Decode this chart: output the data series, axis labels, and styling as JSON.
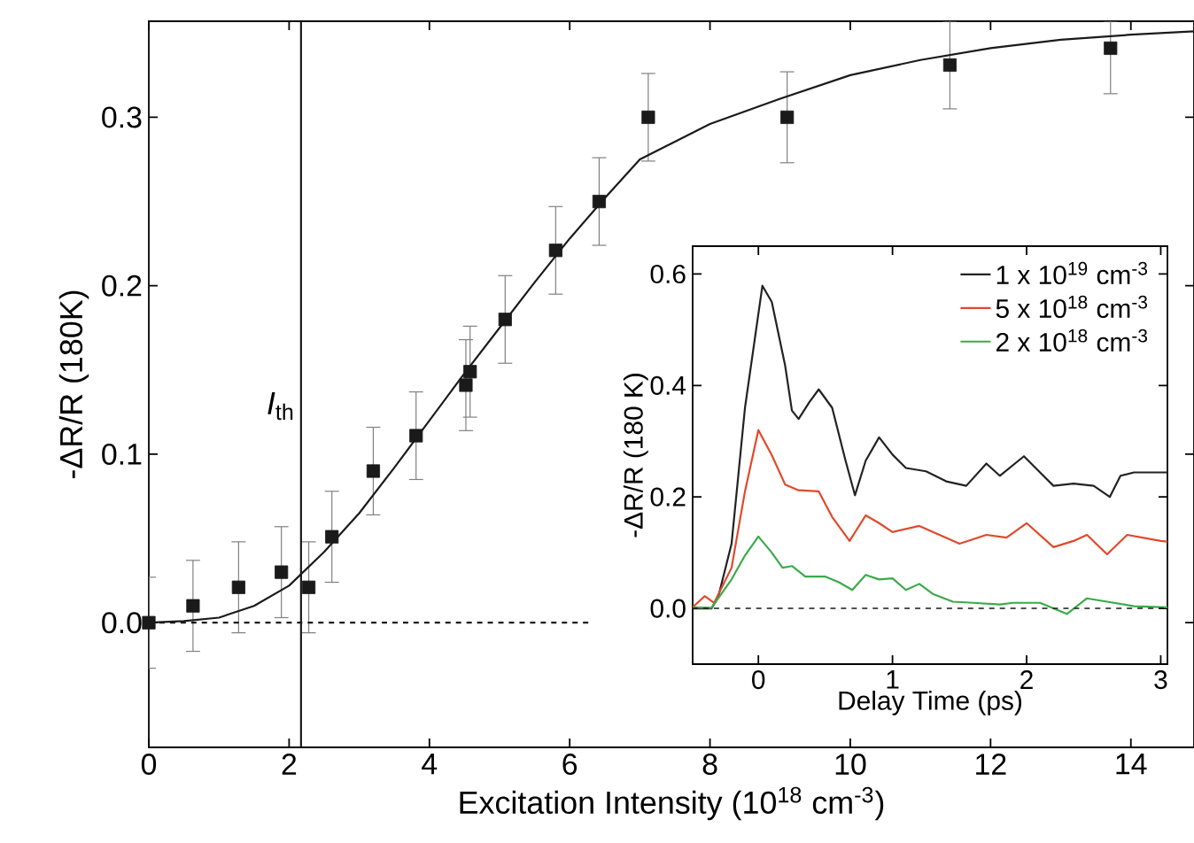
{
  "chart_data": [
    {
      "type": "scatter",
      "xlabel": "Excitation Intensity (10$^{18}$ cm$^{-3}$)",
      "ylabel": "-ΔR/R (180K)",
      "xlim": [
        0,
        14.9
      ],
      "ylim": [
        -0.074,
        0.357
      ],
      "xticks": [
        0,
        2,
        4,
        6,
        8,
        10,
        12,
        14
      ],
      "yticks": [
        {
          "value": 0,
          "label": "0.0"
        },
        {
          "value": 0.1,
          "label": "0.1"
        },
        {
          "value": 0.2,
          "label": "0.2"
        },
        {
          "value": 0.3,
          "label": "0.3"
        }
      ],
      "marker": "square",
      "x": [
        0,
        0.63,
        1.28,
        1.89,
        2.28,
        2.61,
        3.2,
        3.81,
        4.52,
        4.58,
        5.08,
        5.8,
        6.42,
        7.12,
        9.1,
        11.42,
        13.71
      ],
      "series": [
        {
          "type": "scatter",
          "color": "#1a1a1a",
          "values": [
            0,
            0.01,
            0.021,
            0.03,
            0.021,
            0.051,
            0.09,
            0.111,
            0.141,
            0.149,
            0.18,
            0.221,
            0.25,
            0.3,
            0.3,
            0.331,
            0.341
          ],
          "errors": [
            0.027,
            0.027,
            0.027,
            0.027,
            0.027,
            0.027,
            0.026,
            0.026,
            0.027,
            0.027,
            0.026,
            0.026,
            0.026,
            0.026,
            0.027,
            [
              0.305,
              0.357
            ],
            [
              0.314,
              0.357
            ]
          ]
        },
        {
          "type": "line",
          "color": "#1a1a1a",
          "line_style": "solid",
          "marker": "none",
          "x": [
            0,
            0.5,
            1,
            1.5,
            2,
            2.5,
            3,
            3.5,
            4,
            4.5,
            5,
            5.5,
            6,
            6.5,
            7,
            8,
            9,
            10,
            11,
            12,
            13,
            14,
            14.9
          ],
          "values": [
            0,
            0.001,
            0.003,
            0.01,
            0.022,
            0.042,
            0.065,
            0.092,
            0.12,
            0.148,
            0.175,
            0.202,
            0.228,
            0.252,
            0.275,
            0.296,
            0.311,
            0.325,
            0.334,
            0.341,
            0.346,
            0.349,
            0.351
          ]
        },
        {
          "type": "line",
          "color": "#1a1a1a",
          "line_style": "dashed",
          "marker": "none",
          "x": [
            0,
            6.3
          ],
          "values": [
            0,
            0
          ]
        }
      ],
      "ref_lines": [
        {
          "axis": "x",
          "value": 2.17,
          "label": "*I*$_{th}$",
          "color": "#1a1a1a",
          "line_style": "solid"
        }
      ]
    },
    {
      "type": "line",
      "xlabel": "Delay Time (ps)",
      "ylabel": "-ΔR/R (180 K)",
      "xlim": [
        -0.49,
        3.05
      ],
      "ylim": [
        -0.1,
        0.65
      ],
      "xticks": [
        0,
        1,
        2,
        3
      ],
      "yticks": [
        {
          "value": 0,
          "label": "0.0"
        },
        {
          "value": 0.2,
          "label": "0.2"
        },
        {
          "value": 0.4,
          "label": "0.4"
        },
        {
          "value": 0.6,
          "label": "0.6"
        }
      ],
      "legend": "top right",
      "marker": "none",
      "line_style": "solid",
      "series": [
        {
          "name": "1 x 10$^{19}$ cm$^{-3}$",
          "color": "#222222",
          "x": [
            -0.49,
            -0.35,
            -0.3,
            -0.2,
            -0.1,
            0.03,
            0.1,
            0.2,
            0.25,
            0.3,
            0.38,
            0.45,
            0.55,
            0.65,
            0.72,
            0.8,
            0.9,
            1.0,
            1.1,
            1.25,
            1.4,
            1.55,
            1.7,
            1.8,
            1.98,
            2.1,
            2.2,
            2.35,
            2.5,
            2.62,
            2.7,
            2.8,
            3.0,
            3.05
          ],
          "values": [
            0,
            0,
            0.02,
            0.116,
            0.36,
            0.579,
            0.55,
            0.435,
            0.355,
            0.34,
            0.37,
            0.393,
            0.36,
            0.265,
            0.203,
            0.265,
            0.307,
            0.276,
            0.252,
            0.246,
            0.228,
            0.22,
            0.26,
            0.238,
            0.273,
            0.244,
            0.22,
            0.224,
            0.22,
            0.2,
            0.238,
            0.244,
            0.244,
            0.244
          ]
        },
        {
          "name": "5 x 10$^{18}$ cm$^{-3}$",
          "color": "#e0492a",
          "x": [
            -0.49,
            -0.4,
            -0.33,
            -0.2,
            -0.1,
            0.0,
            0.1,
            0.2,
            0.3,
            0.45,
            0.55,
            0.68,
            0.8,
            0.9,
            1.0,
            1.2,
            1.35,
            1.5,
            1.7,
            1.85,
            2.0,
            2.2,
            2.35,
            2.45,
            2.6,
            2.75,
            3.0,
            3.05
          ],
          "values": [
            0.002,
            0.022,
            0.01,
            0.073,
            0.21,
            0.32,
            0.275,
            0.222,
            0.212,
            0.21,
            0.164,
            0.121,
            0.167,
            0.153,
            0.137,
            0.148,
            0.132,
            0.116,
            0.132,
            0.127,
            0.153,
            0.11,
            0.121,
            0.132,
            0.097,
            0.132,
            0.121,
            0.12
          ]
        },
        {
          "name": "2 x 10$^{18}$ cm$^{-3}$",
          "color": "#3aaa4a",
          "x": [
            -0.49,
            -0.35,
            -0.2,
            -0.1,
            0.0,
            0.1,
            0.18,
            0.25,
            0.35,
            0.5,
            0.6,
            0.7,
            0.8,
            0.9,
            1.0,
            1.1,
            1.2,
            1.3,
            1.45,
            1.6,
            1.8,
            1.9,
            2.1,
            2.3,
            2.45,
            2.6,
            2.8,
            3.05
          ],
          "values": [
            0.002,
            0.001,
            0.052,
            0.095,
            0.129,
            0.1,
            0.073,
            0.076,
            0.057,
            0.057,
            0.047,
            0.033,
            0.06,
            0.052,
            0.054,
            0.033,
            0.044,
            0.026,
            0.012,
            0.01,
            0.007,
            0.01,
            0.01,
            -0.01,
            0.018,
            0.012,
            0.004,
            0.002
          ]
        }
      ],
      "ref_lines": [
        {
          "axis": "y",
          "value": 0,
          "color": "#1a1a1a",
          "line_style": "dashed"
        }
      ]
    }
  ]
}
